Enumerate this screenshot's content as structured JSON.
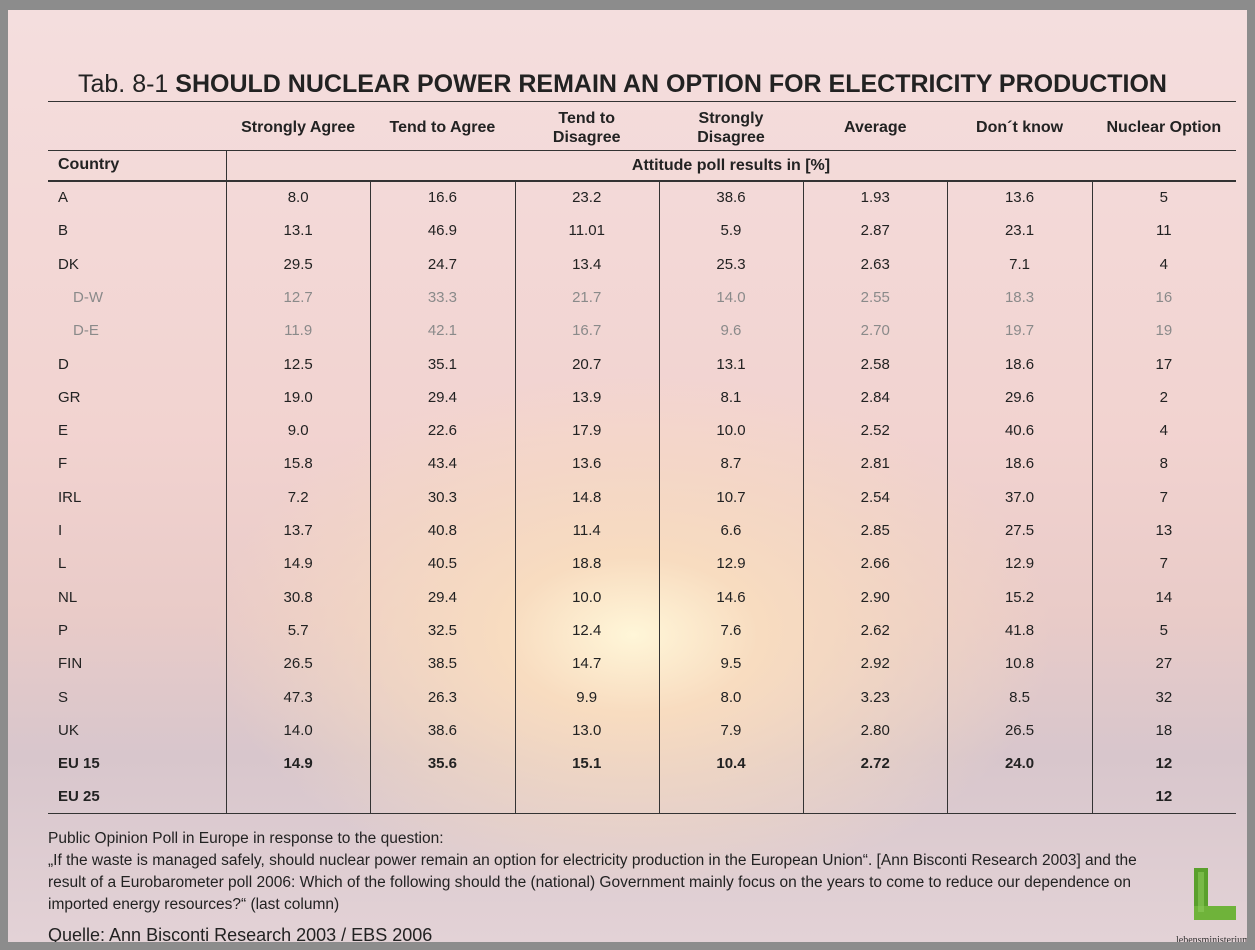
{
  "title": {
    "label": "Tab. 8-1",
    "text": "SHOULD NUCLEAR POWER REMAIN AN OPTION FOR ELECTRICITY PRODUCTION"
  },
  "table": {
    "columns": [
      "Strongly Agree",
      "Tend to Agree",
      "Tend to\nDisagree",
      "Strongly\nDisagree",
      "Average",
      "Don´t know",
      "Nuclear Option"
    ],
    "country_header": "Country",
    "subheader": "Attitude poll results in [%]",
    "rows": [
      {
        "country": "A",
        "values": [
          "8.0",
          "16.6",
          "23.2",
          "38.6",
          "1.93",
          "13.6",
          "5"
        ]
      },
      {
        "country": "B",
        "values": [
          "13.1",
          "46.9",
          "11.01",
          "5.9",
          "2.87",
          "23.1",
          "11"
        ]
      },
      {
        "country": "DK",
        "values": [
          "29.5",
          "24.7",
          "13.4",
          "25.3",
          "2.63",
          "7.1",
          "4"
        ]
      },
      {
        "country": "D-W",
        "style": "sub",
        "values": [
          "12.7",
          "33.3",
          "21.7",
          "14.0",
          "2.55",
          "18.3",
          "16"
        ]
      },
      {
        "country": "D-E",
        "style": "sub",
        "values": [
          "11.9",
          "42.1",
          "16.7",
          "9.6",
          "2.70",
          "19.7",
          "19"
        ]
      },
      {
        "country": "D",
        "values": [
          "12.5",
          "35.1",
          "20.7",
          "13.1",
          "2.58",
          "18.6",
          "17"
        ]
      },
      {
        "country": "GR",
        "values": [
          "19.0",
          "29.4",
          "13.9",
          "8.1",
          "2.84",
          "29.6",
          "2"
        ]
      },
      {
        "country": "E",
        "values": [
          "9.0",
          "22.6",
          "17.9",
          "10.0",
          "2.52",
          "40.6",
          "4"
        ]
      },
      {
        "country": "F",
        "values": [
          "15.8",
          "43.4",
          "13.6",
          "8.7",
          "2.81",
          "18.6",
          "8"
        ]
      },
      {
        "country": "IRL",
        "values": [
          "7.2",
          "30.3",
          "14.8",
          "10.7",
          "2.54",
          "37.0",
          "7"
        ]
      },
      {
        "country": "I",
        "values": [
          "13.7",
          "40.8",
          "11.4",
          "6.6",
          "2.85",
          "27.5",
          "13"
        ]
      },
      {
        "country": "L",
        "values": [
          "14.9",
          "40.5",
          "18.8",
          "12.9",
          "2.66",
          "12.9",
          "7"
        ]
      },
      {
        "country": "NL",
        "values": [
          "30.8",
          "29.4",
          "10.0",
          "14.6",
          "2.90",
          "15.2",
          "14"
        ]
      },
      {
        "country": "P",
        "values": [
          "5.7",
          "32.5",
          "12.4",
          "7.6",
          "2.62",
          "41.8",
          "5"
        ]
      },
      {
        "country": "FIN",
        "values": [
          "26.5",
          "38.5",
          "14.7",
          "9.5",
          "2.92",
          "10.8",
          "27"
        ]
      },
      {
        "country": "S",
        "values": [
          "47.3",
          "26.3",
          "9.9",
          "8.0",
          "3.23",
          "8.5",
          "32"
        ]
      },
      {
        "country": "UK",
        "values": [
          "14.0",
          "38.6",
          "13.0",
          "7.9",
          "2.80",
          "26.5",
          "18"
        ]
      },
      {
        "country": "EU 15",
        "style": "total",
        "values": [
          "14.9",
          "35.6",
          "15.1",
          "10.4",
          "2.72",
          "24.0",
          "12"
        ]
      },
      {
        "country": "EU 25",
        "style": "total",
        "values": [
          null,
          null,
          null,
          null,
          null,
          null,
          "12"
        ]
      }
    ]
  },
  "note": {
    "intro": "Public Opinion Poll in Europe in response to the question:",
    "text": "„If the waste is managed safely, should nuclear power remain an option for electricity production in the European Union“. [Ann Bisconti Research 2003] and the result of a Eurobarometer poll 2006: Which of the following should the (national) Government mainly focus on the years to come to reduce our dependence on imported energy resources?“ (last column)"
  },
  "source": "Quelle: Ann Bisconti Research 2003 / EBS 2006",
  "logo": "lebensministerium.at"
}
